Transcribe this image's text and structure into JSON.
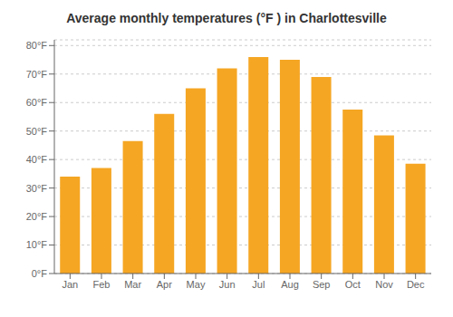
{
  "chart_data": {
    "type": "bar",
    "title": "Average monthly temperatures (°F ) in Charlottesville",
    "categories": [
      "Jan",
      "Feb",
      "Mar",
      "Apr",
      "May",
      "Jun",
      "Jul",
      "Aug",
      "Sep",
      "Oct",
      "Nov",
      "Dec"
    ],
    "values": [
      34,
      37,
      46.5,
      56,
      65,
      72,
      76,
      75,
      69,
      57.5,
      48.5,
      38.5
    ],
    "color": "#F5A623",
    "ylim": [
      0,
      82
    ],
    "yticks": [
      {
        "value": 0,
        "label": "0°F"
      },
      {
        "value": 10,
        "label": "10°F"
      },
      {
        "value": 20,
        "label": "20°F"
      },
      {
        "value": 30,
        "label": "30°F"
      },
      {
        "value": 40,
        "label": "40°F"
      },
      {
        "value": 50,
        "label": "50°F"
      },
      {
        "value": 60,
        "label": "60°F"
      },
      {
        "value": 70,
        "label": "70°F"
      },
      {
        "value": 80,
        "label": "80°F"
      }
    ],
    "grid": true
  }
}
